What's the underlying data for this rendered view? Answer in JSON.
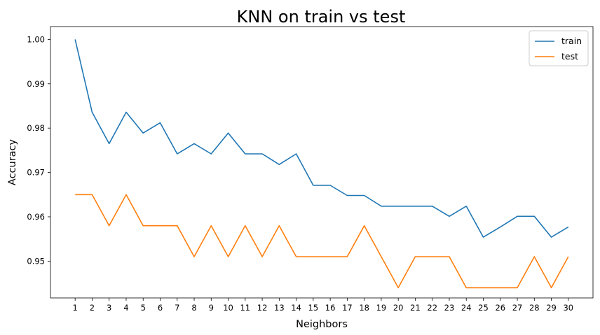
{
  "chart_data": {
    "type": "line",
    "title": "KNN on train vs test",
    "xlabel": "Neighbors",
    "ylabel": "Accuracy",
    "x": [
      1,
      2,
      3,
      4,
      5,
      6,
      7,
      8,
      9,
      10,
      11,
      12,
      13,
      14,
      15,
      16,
      17,
      18,
      19,
      20,
      21,
      22,
      23,
      24,
      25,
      26,
      27,
      28,
      29,
      30
    ],
    "xlim": [
      -0.45,
      31.45
    ],
    "ylim": [
      0.9417,
      1.0029
    ],
    "yticks": [
      0.95,
      0.96,
      0.97,
      0.98,
      0.99,
      1.0
    ],
    "ytick_labels": [
      "0.95",
      "0.96",
      "0.97",
      "0.98",
      "0.99",
      "1.00"
    ],
    "grid": false,
    "legend": "top-right",
    "series": [
      {
        "name": "train",
        "color": "#1f77b4",
        "values": [
          1.0,
          0.9836,
          0.9765,
          0.9836,
          0.9789,
          0.9812,
          0.9742,
          0.9765,
          0.9742,
          0.9789,
          0.9742,
          0.9742,
          0.9718,
          0.9742,
          0.9671,
          0.9671,
          0.9648,
          0.9648,
          0.9624,
          0.9624,
          0.9624,
          0.9624,
          0.9601,
          0.9624,
          0.9554,
          0.9577,
          0.9601,
          0.9601,
          0.9554,
          0.9577
        ]
      },
      {
        "name": "test",
        "color": "#ff7f0e",
        "values": [
          0.965,
          0.965,
          0.958,
          0.965,
          0.958,
          0.958,
          0.958,
          0.951,
          0.958,
          0.951,
          0.958,
          0.951,
          0.958,
          0.951,
          0.951,
          0.951,
          0.951,
          0.958,
          0.951,
          0.944,
          0.951,
          0.951,
          0.951,
          0.944,
          0.944,
          0.944,
          0.944,
          0.951,
          0.944,
          0.951
        ]
      }
    ]
  }
}
